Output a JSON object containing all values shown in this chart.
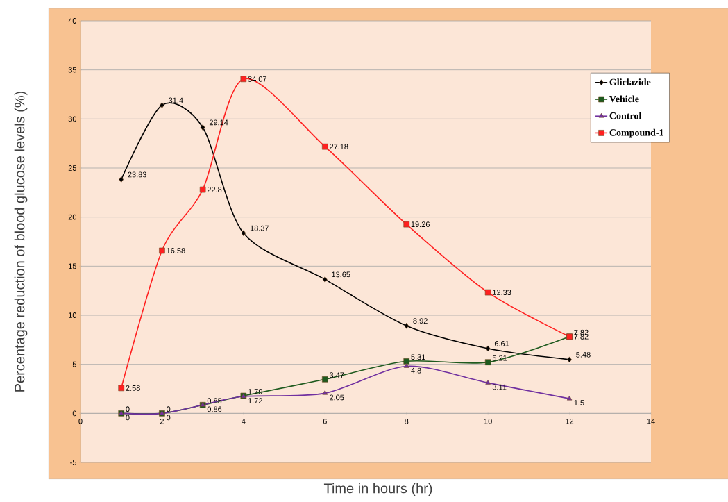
{
  "chart_data": {
    "type": "line",
    "xlabel": "Time in hours (hr)",
    "ylabel": "Percentage reduction of blood glucose levels (%)",
    "x": [
      1,
      2,
      3,
      4,
      6,
      8,
      10,
      12
    ],
    "xlim": [
      0,
      14
    ],
    "xticks": [
      0,
      2,
      4,
      6,
      8,
      10,
      12,
      14
    ],
    "ylim": [
      -5,
      40
    ],
    "yticks": [
      -5,
      0,
      5,
      10,
      15,
      20,
      25,
      30,
      35,
      40
    ],
    "grid": "y",
    "legend": "top right",
    "data_labels": true,
    "series": [
      {
        "name": "Gliclazide",
        "color": "#000000",
        "marker": "diamond",
        "values": [
          23.83,
          31.4,
          29.14,
          18.37,
          13.65,
          8.92,
          6.61,
          5.48
        ]
      },
      {
        "name": "Vehicle",
        "color": "#1e5a1e",
        "marker": "square",
        "values": [
          0,
          0,
          0.85,
          1.79,
          3.47,
          5.31,
          5.21,
          7.82
        ]
      },
      {
        "name": "Control",
        "color": "#7030a0",
        "marker": "triangle",
        "values": [
          0,
          0,
          0.86,
          1.72,
          2.05,
          4.8,
          3.11,
          1.5
        ]
      },
      {
        "name": "Compound-1",
        "color": "#ff2020",
        "marker": "square",
        "values": [
          2.58,
          16.58,
          22.8,
          34.07,
          27.18,
          19.26,
          12.33,
          7.82
        ]
      }
    ]
  }
}
